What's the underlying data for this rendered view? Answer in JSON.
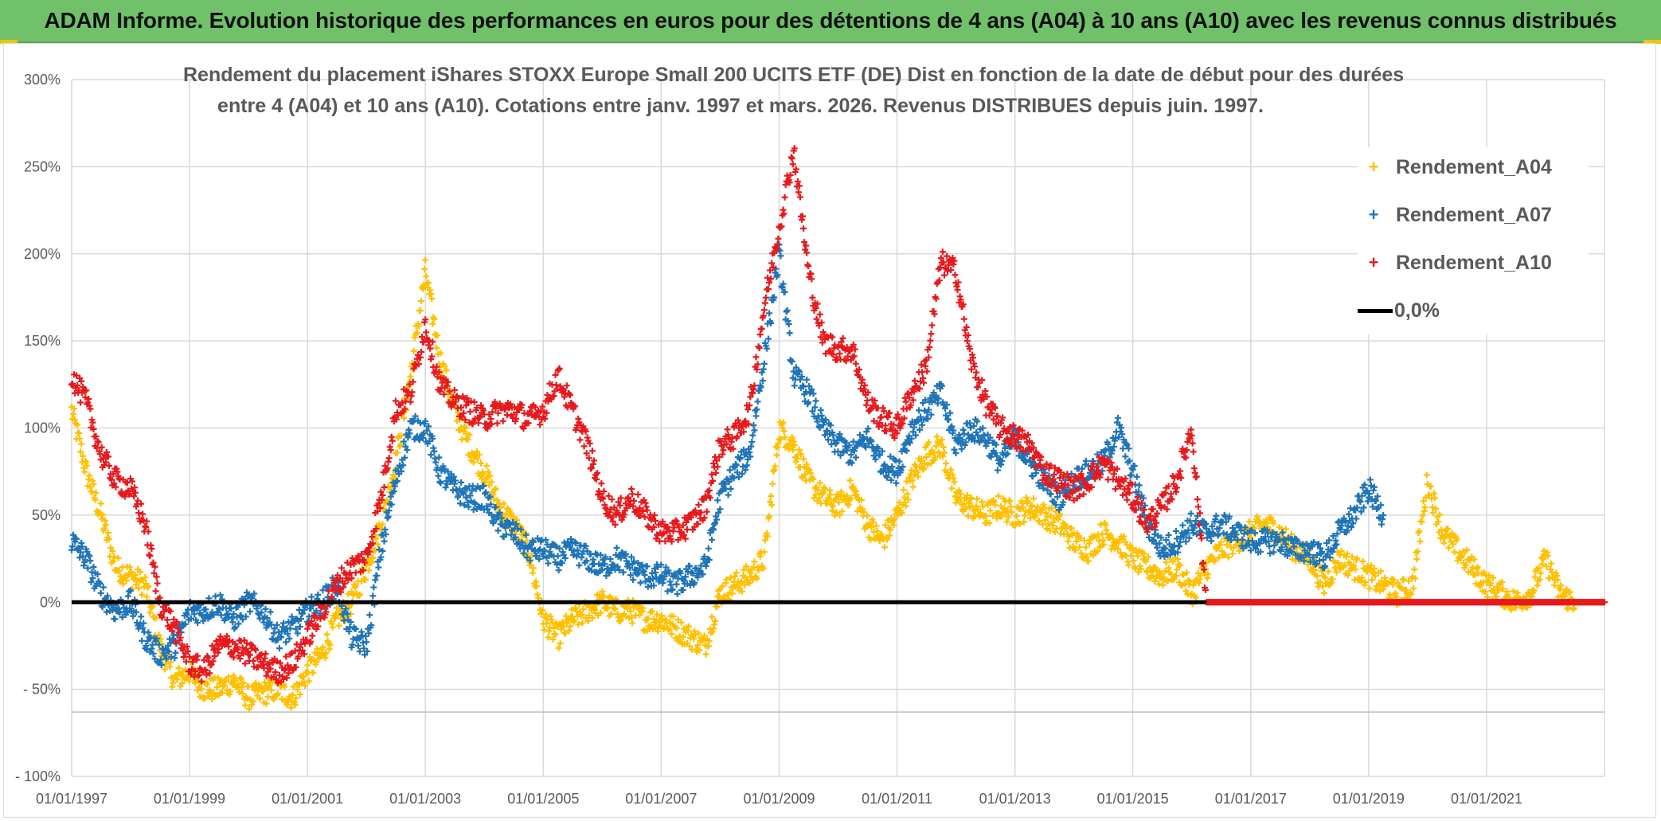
{
  "banner": {
    "title": "ADAM Informe. Evolution historique des performances en euros pour des détentions de 4 ans (A04) à 10 ans (A10) avec les revenus connus distribués"
  },
  "colors": {
    "A04": "#ffc000",
    "A07": "#1f74b8",
    "A10": "#e8191c",
    "zero": "#000000",
    "banner": "#70c16a",
    "grid": "#d9d9d9"
  },
  "chart_data": {
    "type": "scatter",
    "title_line1": "Rendement du placement iShares STOXX Europe Small 200 UCITS ETF (DE) Dist en fonction de la date de début pour des durées",
    "title_line2": "entre 4 (A04) et 10 ans (A10). Cotations entre janv. 1997 et mars. 2026. Revenus DISTRIBUES depuis juin. 1997.",
    "xlabel": "",
    "ylabel": "",
    "xlim": [
      "1997-01-01",
      "2023-01-01"
    ],
    "ylim": [
      -100,
      300
    ],
    "x_ticks": [
      "01/01/1997",
      "01/01/1999",
      "01/01/2001",
      "01/01/2003",
      "01/01/2005",
      "01/01/2007",
      "01/01/2009",
      "01/01/2011",
      "01/01/2013",
      "01/01/2015",
      "01/01/2017",
      "01/01/2019",
      "01/01/2021"
    ],
    "y_ticks": [
      "300%",
      "250%",
      "200%",
      "150%",
      "100%",
      "50%",
      "0%",
      "- 50%",
      "- 100%"
    ],
    "y_tick_values": [
      300,
      250,
      200,
      150,
      100,
      50,
      0,
      -50,
      -100
    ],
    "grid": true,
    "legend_position": "top-right",
    "series": [
      {
        "name": "Rendement_A04",
        "points": [
          [
            "1997-01",
            110
          ],
          [
            "1997-04",
            75
          ],
          [
            "1997-07",
            50
          ],
          [
            "1997-10",
            20
          ],
          [
            "1998-01",
            15
          ],
          [
            "1998-04",
            10
          ],
          [
            "1998-07",
            -25
          ],
          [
            "1998-10",
            -45
          ],
          [
            "1999-01",
            -40
          ],
          [
            "1999-04",
            -50
          ],
          [
            "1999-07",
            -50
          ],
          [
            "1999-10",
            -45
          ],
          [
            "2000-01",
            -55
          ],
          [
            "2000-04",
            -52
          ],
          [
            "2000-07",
            -50
          ],
          [
            "2000-10",
            -55
          ],
          [
            "2001-01",
            -40
          ],
          [
            "2001-04",
            -30
          ],
          [
            "2001-07",
            -10
          ],
          [
            "2001-10",
            0
          ],
          [
            "2002-01",
            20
          ],
          [
            "2002-04",
            45
          ],
          [
            "2002-07",
            80
          ],
          [
            "2002-10",
            130
          ],
          [
            "2003-01",
            190
          ],
          [
            "2003-04",
            140
          ],
          [
            "2003-07",
            110
          ],
          [
            "2003-10",
            90
          ],
          [
            "2004-01",
            75
          ],
          [
            "2004-04",
            55
          ],
          [
            "2004-07",
            45
          ],
          [
            "2004-10",
            30
          ],
          [
            "2005-01",
            -10
          ],
          [
            "2005-04",
            -20
          ],
          [
            "2005-07",
            -10
          ],
          [
            "2005-10",
            -5
          ],
          [
            "2006-01",
            0
          ],
          [
            "2006-04",
            -5
          ],
          [
            "2006-07",
            -5
          ],
          [
            "2006-10",
            -10
          ],
          [
            "2007-01",
            -10
          ],
          [
            "2007-04",
            -15
          ],
          [
            "2007-07",
            -20
          ],
          [
            "2007-10",
            -25
          ],
          [
            "2008-01",
            5
          ],
          [
            "2008-04",
            10
          ],
          [
            "2008-07",
            15
          ],
          [
            "2008-10",
            25
          ],
          [
            "2009-01",
            100
          ],
          [
            "2009-04",
            90
          ],
          [
            "2009-07",
            70
          ],
          [
            "2009-10",
            60
          ],
          [
            "2010-01",
            55
          ],
          [
            "2010-04",
            65
          ],
          [
            "2010-07",
            45
          ],
          [
            "2010-10",
            35
          ],
          [
            "2011-01",
            50
          ],
          [
            "2011-04",
            70
          ],
          [
            "2011-07",
            85
          ],
          [
            "2011-10",
            90
          ],
          [
            "2012-01",
            60
          ],
          [
            "2012-04",
            55
          ],
          [
            "2012-07",
            50
          ],
          [
            "2012-10",
            55
          ],
          [
            "2013-01",
            50
          ],
          [
            "2013-04",
            55
          ],
          [
            "2013-07",
            50
          ],
          [
            "2013-10",
            45
          ],
          [
            "2014-01",
            35
          ],
          [
            "2014-04",
            30
          ],
          [
            "2014-07",
            40
          ],
          [
            "2014-10",
            35
          ],
          [
            "2015-01",
            25
          ],
          [
            "2015-04",
            20
          ],
          [
            "2015-07",
            15
          ],
          [
            "2015-10",
            20
          ],
          [
            "2016-01",
            5
          ],
          [
            "2016-04",
            20
          ],
          [
            "2016-07",
            30
          ],
          [
            "2016-10",
            35
          ],
          [
            "2017-01",
            40
          ],
          [
            "2017-04",
            45
          ],
          [
            "2017-07",
            40
          ],
          [
            "2017-10",
            30
          ],
          [
            "2018-01",
            25
          ],
          [
            "2018-04",
            10
          ],
          [
            "2018-07",
            25
          ],
          [
            "2018-10",
            20
          ],
          [
            "2019-01",
            15
          ],
          [
            "2019-04",
            10
          ],
          [
            "2019-07",
            5
          ],
          [
            "2019-10",
            10
          ],
          [
            "2020-01",
            70
          ],
          [
            "2020-04",
            40
          ],
          [
            "2020-07",
            30
          ],
          [
            "2020-10",
            20
          ],
          [
            "2021-01",
            10
          ],
          [
            "2021-04",
            5
          ],
          [
            "2021-07",
            0
          ],
          [
            "2021-10",
            5
          ],
          [
            "2022-01",
            25
          ],
          [
            "2022-04",
            5
          ],
          [
            "2022-07",
            0
          ],
          [
            "2022-10",
            0
          ],
          [
            "2023-01",
            0
          ]
        ]
      },
      {
        "name": "Rendement_A07",
        "points": [
          [
            "1997-01",
            35
          ],
          [
            "1997-04",
            25
          ],
          [
            "1997-07",
            5
          ],
          [
            "1997-10",
            -5
          ],
          [
            "1998-01",
            0
          ],
          [
            "1998-04",
            -20
          ],
          [
            "1998-07",
            -30
          ],
          [
            "1998-10",
            -25
          ],
          [
            "1999-01",
            -5
          ],
          [
            "1999-04",
            -5
          ],
          [
            "1999-07",
            0
          ],
          [
            "1999-10",
            -10
          ],
          [
            "2000-01",
            0
          ],
          [
            "2000-04",
            -5
          ],
          [
            "2000-07",
            -20
          ],
          [
            "2000-10",
            -15
          ],
          [
            "2001-01",
            -5
          ],
          [
            "2001-04",
            0
          ],
          [
            "2001-07",
            10
          ],
          [
            "2001-10",
            -20
          ],
          [
            "2002-01",
            -25
          ],
          [
            "2002-04",
            30
          ],
          [
            "2002-07",
            70
          ],
          [
            "2002-10",
            100
          ],
          [
            "2003-01",
            100
          ],
          [
            "2003-04",
            75
          ],
          [
            "2003-07",
            65
          ],
          [
            "2003-10",
            60
          ],
          [
            "2004-01",
            60
          ],
          [
            "2004-04",
            45
          ],
          [
            "2004-07",
            40
          ],
          [
            "2004-10",
            30
          ],
          [
            "2005-01",
            30
          ],
          [
            "2005-04",
            25
          ],
          [
            "2005-07",
            30
          ],
          [
            "2005-10",
            25
          ],
          [
            "2006-01",
            20
          ],
          [
            "2006-04",
            25
          ],
          [
            "2006-07",
            20
          ],
          [
            "2006-10",
            15
          ],
          [
            "2007-01",
            15
          ],
          [
            "2007-04",
            10
          ],
          [
            "2007-07",
            15
          ],
          [
            "2007-10",
            20
          ],
          [
            "2008-01",
            60
          ],
          [
            "2008-04",
            75
          ],
          [
            "2008-07",
            85
          ],
          [
            "2008-10",
            140
          ],
          [
            "2009-01",
            200
          ],
          [
            "2009-04",
            130
          ],
          [
            "2009-07",
            120
          ],
          [
            "2009-10",
            100
          ],
          [
            "2010-01",
            90
          ],
          [
            "2010-04",
            85
          ],
          [
            "2010-07",
            95
          ],
          [
            "2010-10",
            80
          ],
          [
            "2011-01",
            75
          ],
          [
            "2011-04",
            100
          ],
          [
            "2011-07",
            110
          ],
          [
            "2011-10",
            120
          ],
          [
            "2012-01",
            90
          ],
          [
            "2012-04",
            100
          ],
          [
            "2012-07",
            95
          ],
          [
            "2012-10",
            80
          ],
          [
            "2013-01",
            95
          ],
          [
            "2013-04",
            80
          ],
          [
            "2013-07",
            70
          ],
          [
            "2013-10",
            60
          ],
          [
            "2014-01",
            70
          ],
          [
            "2014-04",
            75
          ],
          [
            "2014-07",
            80
          ],
          [
            "2014-10",
            100
          ],
          [
            "2015-01",
            75
          ],
          [
            "2015-04",
            45
          ],
          [
            "2015-07",
            30
          ],
          [
            "2015-10",
            35
          ],
          [
            "2016-01",
            45
          ],
          [
            "2016-04",
            40
          ],
          [
            "2016-07",
            45
          ],
          [
            "2016-10",
            40
          ],
          [
            "2017-01",
            35
          ],
          [
            "2017-04",
            35
          ],
          [
            "2017-07",
            35
          ],
          [
            "2017-10",
            30
          ],
          [
            "2018-01",
            30
          ],
          [
            "2018-04",
            25
          ],
          [
            "2018-07",
            40
          ],
          [
            "2018-10",
            50
          ],
          [
            "2019-01",
            65
          ],
          [
            "2019-04",
            50
          ]
        ]
      },
      {
        "name": "Rendement_A10",
        "points": [
          [
            "1997-01",
            130
          ],
          [
            "1997-04",
            115
          ],
          [
            "1997-07",
            85
          ],
          [
            "1997-10",
            70
          ],
          [
            "1998-01",
            65
          ],
          [
            "1998-04",
            45
          ],
          [
            "1998-07",
            0
          ],
          [
            "1998-10",
            -15
          ],
          [
            "1999-01",
            -35
          ],
          [
            "1999-04",
            -40
          ],
          [
            "1999-07",
            -25
          ],
          [
            "1999-10",
            -25
          ],
          [
            "2000-01",
            -30
          ],
          [
            "2000-04",
            -35
          ],
          [
            "2000-07",
            -40
          ],
          [
            "2000-10",
            -35
          ],
          [
            "2001-01",
            -20
          ],
          [
            "2001-04",
            -5
          ],
          [
            "2001-07",
            10
          ],
          [
            "2001-10",
            20
          ],
          [
            "2002-01",
            25
          ],
          [
            "2002-04",
            60
          ],
          [
            "2002-07",
            110
          ],
          [
            "2002-10",
            120
          ],
          [
            "2003-01",
            160
          ],
          [
            "2003-04",
            125
          ],
          [
            "2003-07",
            115
          ],
          [
            "2003-10",
            110
          ],
          [
            "2004-01",
            105
          ],
          [
            "2004-04",
            110
          ],
          [
            "2004-07",
            110
          ],
          [
            "2004-10",
            105
          ],
          [
            "2005-01",
            110
          ],
          [
            "2005-04",
            130
          ],
          [
            "2005-07",
            110
          ],
          [
            "2005-10",
            90
          ],
          [
            "2006-01",
            60
          ],
          [
            "2006-04",
            50
          ],
          [
            "2006-07",
            60
          ],
          [
            "2006-10",
            50
          ],
          [
            "2007-01",
            40
          ],
          [
            "2007-04",
            40
          ],
          [
            "2007-07",
            45
          ],
          [
            "2007-10",
            55
          ],
          [
            "2008-01",
            90
          ],
          [
            "2008-04",
            95
          ],
          [
            "2008-07",
            110
          ],
          [
            "2008-10",
            170
          ],
          [
            "2009-01",
            215
          ],
          [
            "2009-04",
            260
          ],
          [
            "2009-07",
            190
          ],
          [
            "2009-10",
            150
          ],
          [
            "2010-01",
            145
          ],
          [
            "2010-04",
            145
          ],
          [
            "2010-07",
            115
          ],
          [
            "2010-10",
            105
          ],
          [
            "2011-01",
            100
          ],
          [
            "2011-04",
            120
          ],
          [
            "2011-07",
            135
          ],
          [
            "2011-10",
            195
          ],
          [
            "2012-01",
            190
          ],
          [
            "2012-04",
            140
          ],
          [
            "2012-07",
            115
          ],
          [
            "2012-10",
            100
          ],
          [
            "2013-01",
            95
          ],
          [
            "2013-04",
            90
          ],
          [
            "2013-07",
            75
          ],
          [
            "2013-10",
            70
          ],
          [
            "2014-01",
            65
          ],
          [
            "2014-04",
            70
          ],
          [
            "2014-07",
            80
          ],
          [
            "2014-10",
            70
          ],
          [
            "2015-01",
            60
          ],
          [
            "2015-04",
            45
          ],
          [
            "2015-07",
            55
          ],
          [
            "2015-10",
            70
          ],
          [
            "2016-01",
            100
          ],
          [
            "2016-04",
            0
          ],
          [
            "2017-01",
            0
          ],
          [
            "2018-01",
            0
          ],
          [
            "2019-01",
            0
          ],
          [
            "2020-01",
            0
          ],
          [
            "2021-01",
            0
          ],
          [
            "2022-01",
            0
          ],
          [
            "2023-01",
            0
          ]
        ]
      }
    ]
  },
  "legend": {
    "marker": "+",
    "items": [
      {
        "label": "Rendement_A04"
      },
      {
        "label": "Rendement_A07"
      },
      {
        "label": "Rendement_A10"
      },
      {
        "label": "0,0%"
      }
    ]
  }
}
